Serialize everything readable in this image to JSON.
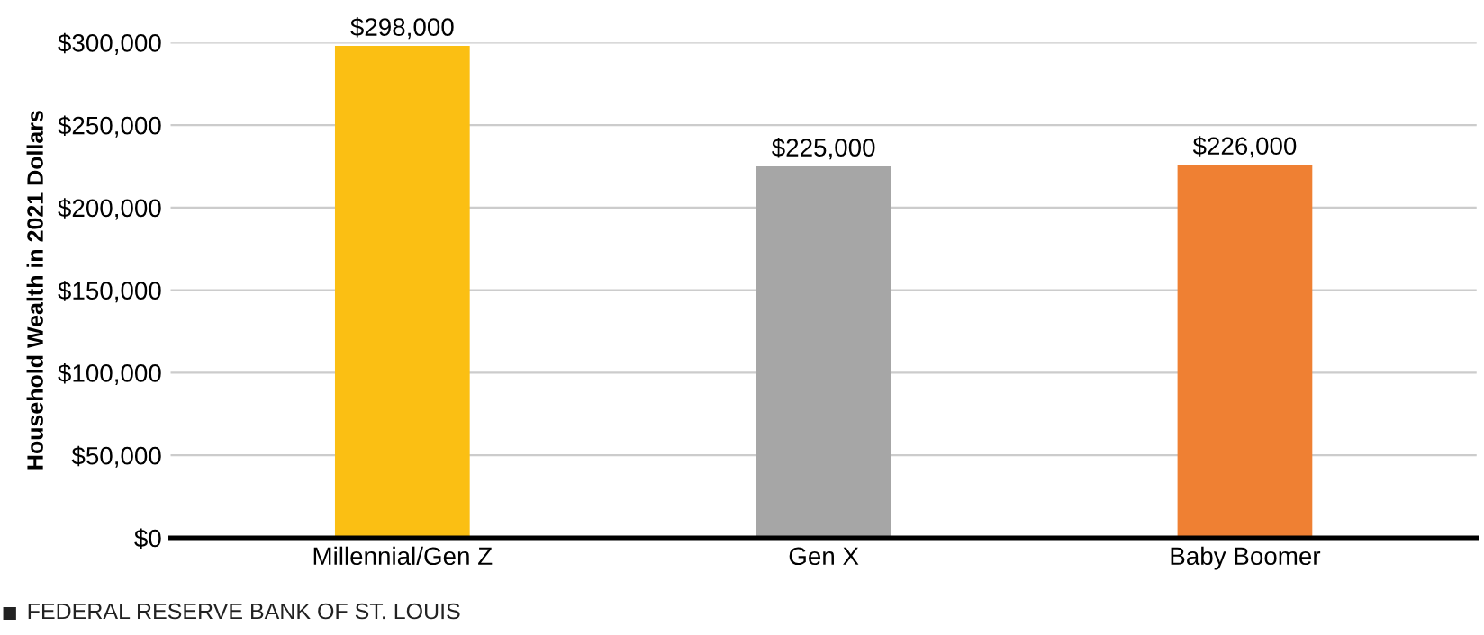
{
  "chart_data": {
    "type": "bar",
    "ylabel": "Household Wealth in 2021 Dollars",
    "categories": [
      "Millennial/Gen Z",
      "Gen X",
      "Baby Boomer"
    ],
    "values": [
      298000,
      225000,
      226000
    ],
    "value_labels": [
      "$298,000",
      "$225,000",
      "$226,000"
    ],
    "colors": [
      "#fbbf13",
      "#a6a6a6",
      "#ef8033"
    ],
    "ylim": [
      0,
      300000
    ],
    "yticks": [
      {
        "value": 0,
        "label": "$0"
      },
      {
        "value": 50000,
        "label": "$50,000"
      },
      {
        "value": 100000,
        "label": "$100,000"
      },
      {
        "value": 150000,
        "label": "$150,000"
      },
      {
        "value": 200000,
        "label": "$200,000"
      },
      {
        "value": 250000,
        "label": "$250,000"
      },
      {
        "value": 300000,
        "label": "$300,000"
      }
    ],
    "grid": "y",
    "annotations": [
      "FEDERAL RESERVE BANK OF ST. LOUIS"
    ]
  }
}
